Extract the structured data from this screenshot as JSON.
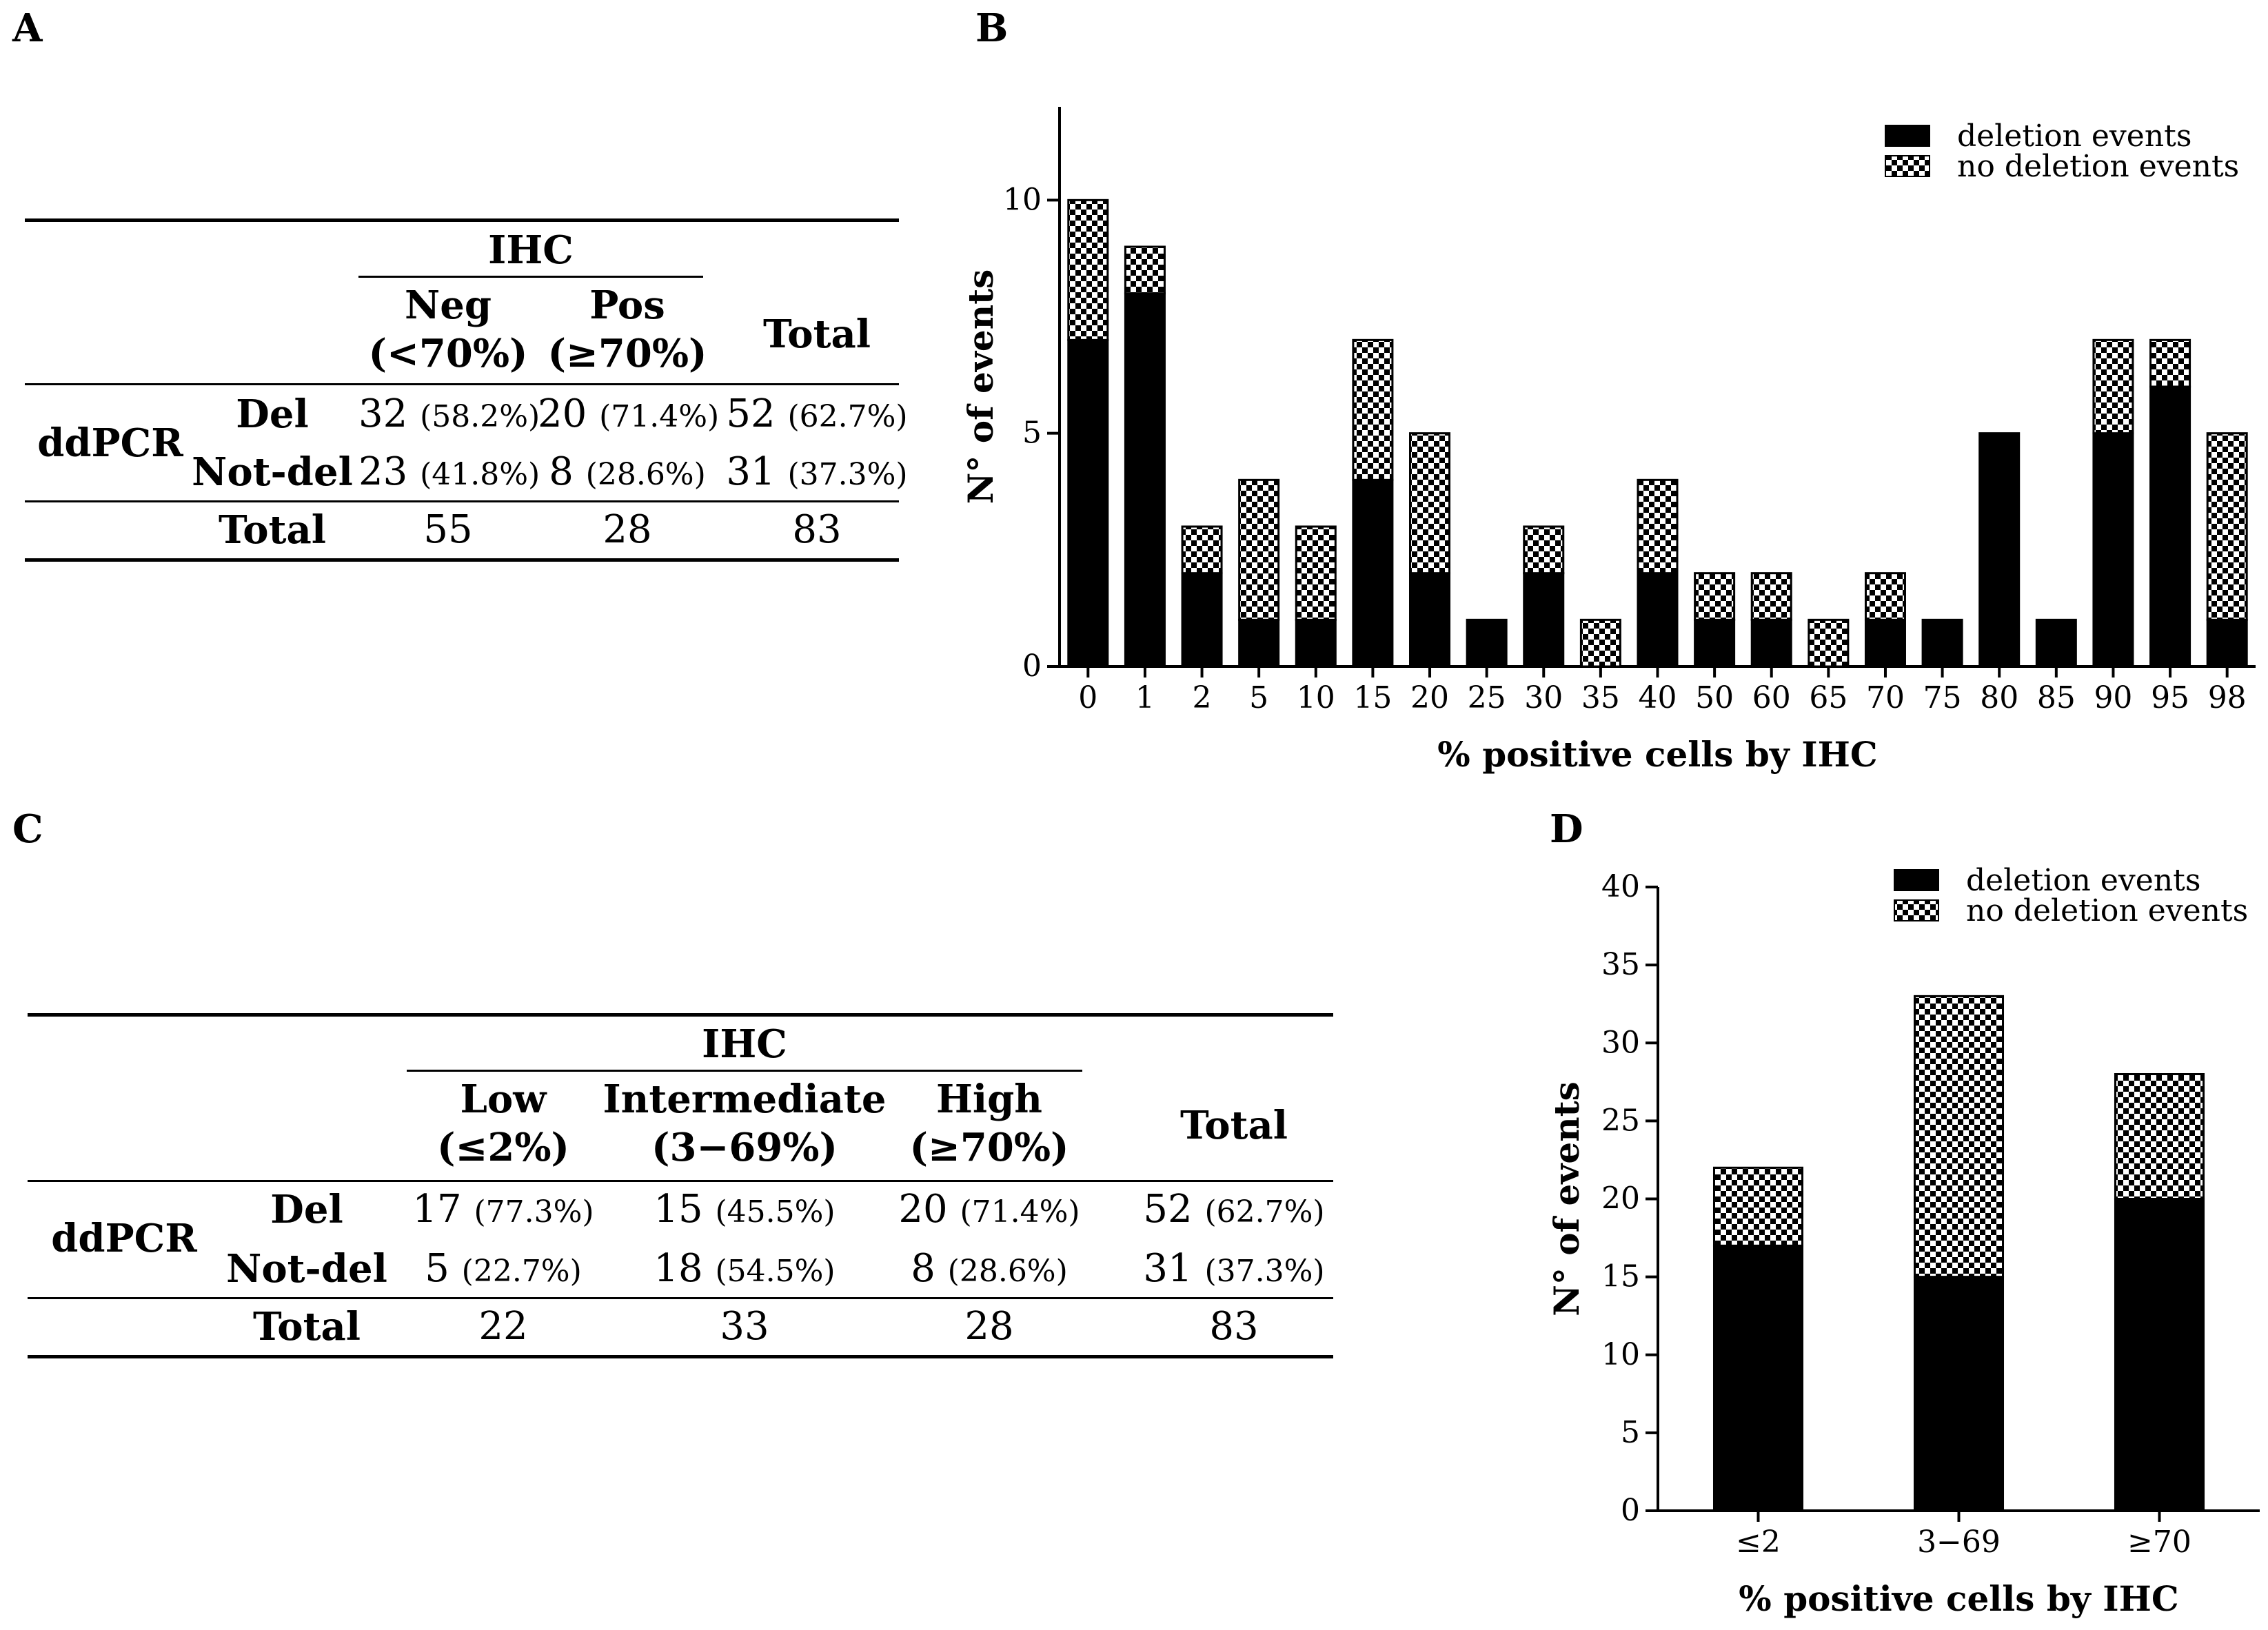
{
  "panels": {
    "a": "A",
    "b": "B",
    "c": "C",
    "d": "D"
  },
  "table_a": {
    "ihc_header": "IHC",
    "col1": "Neg",
    "col1_sub": "(<70%)",
    "col2": "Pos",
    "col2_sub": "(≥70%)",
    "col_total": "Total",
    "row_group": "ddPCR",
    "rows": [
      {
        "label": "Del",
        "c1": "32",
        "c1p": "(58.2%)",
        "c2": "20",
        "c2p": "(71.4%)",
        "t": "52",
        "tp": "(62.7%)"
      },
      {
        "label": "Not-del",
        "c1": "23",
        "c1p": "(41.8%)",
        "c2": "8",
        "c2p": "(28.6%)",
        "t": "31",
        "tp": "(37.3%)"
      }
    ],
    "total_row": {
      "label": "Total",
      "c1": "55",
      "c2": "28",
      "t": "83"
    }
  },
  "table_c": {
    "ihc_header": "IHC",
    "col1": "Low",
    "col1_sub": "(≤2%)",
    "col2": "Intermediate",
    "col2_sub": "(3−69%)",
    "col3": "High",
    "col3_sub": "(≥70%)",
    "col_total": "Total",
    "row_group": "ddPCR",
    "rows": [
      {
        "label": "Del",
        "c1": "17",
        "c1p": "(77.3%)",
        "c2": "15",
        "c2p": "(45.5%)",
        "c3": "20",
        "c3p": "(71.4%)",
        "t": "52",
        "tp": "(62.7%)"
      },
      {
        "label": "Not-del",
        "c1": "5",
        "c1p": "(22.7%)",
        "c2": "18",
        "c2p": "(54.5%)",
        "c3": "8",
        "c3p": "(28.6%)",
        "t": "31",
        "tp": "(37.3%)"
      }
    ],
    "total_row": {
      "label": "Total",
      "c1": "22",
      "c2": "33",
      "c3": "28",
      "t": "83"
    }
  },
  "chart_data": [
    {
      "id": "B",
      "type": "bar",
      "stacked": true,
      "title": "",
      "xlabel": "% positive cells by IHC",
      "ylabel": "N° of events",
      "ylim": [
        0,
        12
      ],
      "yticks": [
        0,
        5,
        10
      ],
      "legend_position": "top-right",
      "categories": [
        "0",
        "1",
        "2",
        "5",
        "10",
        "15",
        "20",
        "25",
        "30",
        "35",
        "40",
        "50",
        "60",
        "65",
        "70",
        "75",
        "80",
        "85",
        "90",
        "95",
        "98"
      ],
      "series": [
        {
          "name": "deletion events",
          "color": "#000000",
          "pattern": "solid",
          "values": [
            7,
            8,
            2,
            1,
            1,
            4,
            2,
            1,
            2,
            0,
            2,
            1,
            1,
            0,
            1,
            1,
            5,
            1,
            5,
            6,
            1
          ]
        },
        {
          "name": "no deletion events",
          "color": "#000000",
          "pattern": "checker",
          "values": [
            3,
            1,
            1,
            3,
            2,
            3,
            3,
            0,
            1,
            1,
            2,
            1,
            1,
            1,
            1,
            0,
            0,
            0,
            2,
            1,
            4
          ]
        }
      ]
    },
    {
      "id": "D",
      "type": "bar",
      "stacked": true,
      "title": "",
      "xlabel": "% positive cells by IHC",
      "ylabel": "N° of events",
      "ylim": [
        0,
        40
      ],
      "yticks": [
        0,
        5,
        10,
        15,
        20,
        25,
        30,
        35,
        40
      ],
      "legend_position": "top-right",
      "categories": [
        "≤2",
        "3−69",
        "≥70"
      ],
      "series": [
        {
          "name": "deletion events",
          "color": "#000000",
          "pattern": "solid",
          "values": [
            17,
            15,
            20
          ]
        },
        {
          "name": "no deletion events",
          "color": "#000000",
          "pattern": "checker",
          "values": [
            5,
            18,
            8
          ]
        }
      ]
    }
  ]
}
